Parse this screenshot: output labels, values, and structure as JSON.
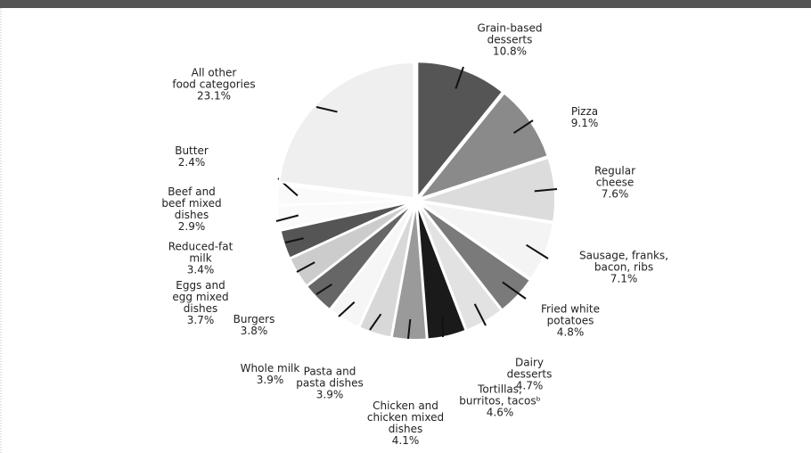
{
  "chart_data": {
    "type": "pie",
    "categories": [
      "Grain-based\ndesserts",
      "Pizza",
      "Regular\ncheese",
      "Sausage, franks,\nbacon, ribs",
      "Fried white\npotatoes",
      "Dairy\ndesserts",
      "Tortillas,\nburritos, tacosᵇ",
      "Chicken and\nchicken mixed\ndishes",
      "Pasta and\npasta dishes",
      "Whole milk",
      "Burgers",
      "Eggs and\negg mixed\ndishes",
      "Reduced-fat\nmilk",
      "Beef and\nbeef mixed\ndishes",
      "Butter",
      "All other\nfood categories"
    ],
    "values": [
      10.8,
      9.1,
      7.6,
      7.1,
      4.8,
      4.7,
      4.6,
      4.1,
      3.9,
      3.9,
      3.8,
      3.7,
      3.4,
      2.9,
      2.4,
      23.1
    ],
    "value_labels": [
      "10.8%",
      "9.1%",
      "7.6%",
      "7.1%",
      "4.8%",
      "4.7%",
      "4.6%",
      "4.1%",
      "3.9%",
      "3.9%",
      "3.8%",
      "3.7%",
      "3.4%",
      "2.9%",
      "2.4%",
      "23.1%"
    ],
    "colors": [
      "#555555",
      "#8a8a8a",
      "#dcdcdc",
      "#f4f4f4",
      "#7a7a7a",
      "#e2e2e2",
      "#1a1a1a",
      "#9a9a9a",
      "#d8d8d8",
      "#f6f6f6",
      "#666666",
      "#cccccc",
      "#555555",
      "#fafafa",
      "#fafafa",
      "#efefef"
    ]
  }
}
